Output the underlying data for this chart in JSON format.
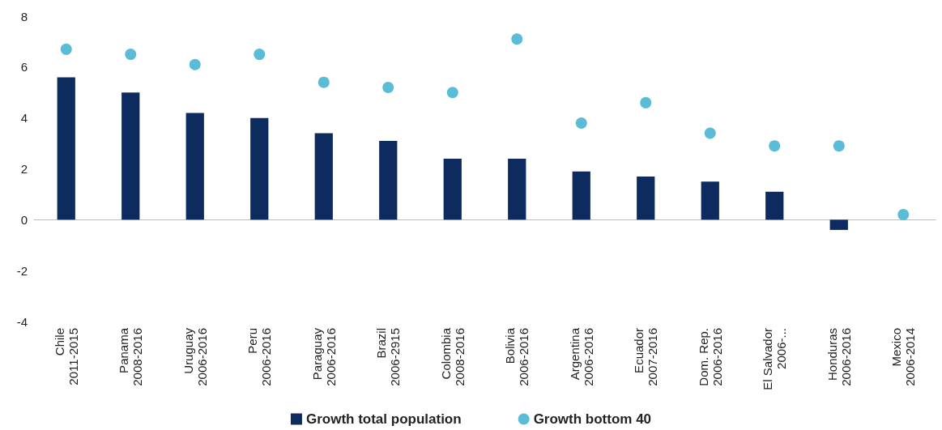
{
  "chart_data": {
    "type": "bar",
    "categories": [
      "Chile\n2011-2015",
      "Panama\n2008-2016",
      "Uruguay\n2006-2016",
      "Peru\n2006-2016",
      "Paraguay\n2006-2016",
      "Brazil\n2006-2915",
      "Colombia\n2008-2016",
      "Bolivia\n2006-2016",
      "Argentina\n2006-2016",
      "Ecuador\n2007-2016",
      "Dom. Rep.\n2006-2016",
      "El Salvador\n2006-...",
      "Honduras\n2006-2016",
      "Mexico\n2006-2014"
    ],
    "series": [
      {
        "name": "Growth total population",
        "color": "#0d2b5e",
        "values": [
          5.6,
          5.0,
          4.2,
          4.0,
          3.4,
          3.1,
          2.4,
          2.4,
          1.9,
          1.7,
          1.5,
          1.1,
          -0.4,
          null
        ]
      },
      {
        "name": "Growth bottom 40",
        "type": "scatter",
        "color": "#5bbcd8",
        "values": [
          6.7,
          6.5,
          6.1,
          6.5,
          5.4,
          5.2,
          5.0,
          7.1,
          3.8,
          4.6,
          3.4,
          2.9,
          2.9,
          0.2
        ]
      }
    ],
    "ylim": [
      -4,
      8
    ],
    "yticks": [
      -4,
      -2,
      0,
      2,
      4,
      6,
      8
    ],
    "legend": "bottom",
    "marker": "circle"
  }
}
